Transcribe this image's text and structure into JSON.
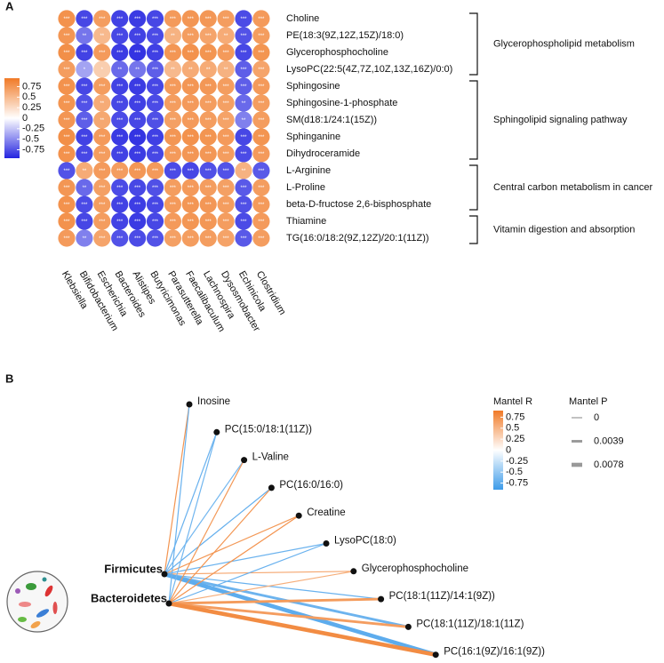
{
  "chart_data": [
    {
      "type": "heatmap",
      "panel": "A",
      "x_categories": [
        "Klebsiella",
        "Bifidobacterium",
        "Escherichia",
        "Bacteroides",
        "Alistipes",
        "Butyricimonas",
        "Parasutterella",
        "Faecalibaculum",
        "Lachnospira",
        "Dysosmobacter",
        "Echinicola",
        "Clostridium"
      ],
      "colorbar": {
        "lim": [
          -0.95,
          0.95
        ],
        "ticks": [
          0.75,
          0.5,
          0.25,
          0,
          -0.25,
          -0.5,
          -0.75
        ],
        "low": "#2424e0",
        "mid": "#ffffff",
        "high": "#f07a26"
      },
      "row_groups": [
        {
          "name": "Glycerophospholipid metabolism",
          "color": "#e01010",
          "rows": [
            {
              "name": "Choline",
              "values": [
                0.78,
                -0.8,
                0.7,
                -0.82,
                -0.85,
                -0.8,
                0.72,
                0.75,
                0.74,
                0.7,
                -0.78,
                0.72
              ],
              "value_labels": [
                "***",
                "***",
                "***",
                "***",
                "***",
                "***",
                "***",
                "***",
                "***",
                "***",
                "***",
                "***"
              ]
            },
            {
              "name": "PE(18:3(9Z,12Z,15Z)/18:0)",
              "values": [
                0.75,
                -0.6,
                0.5,
                -0.8,
                -0.82,
                -0.78,
                0.55,
                0.7,
                0.65,
                0.6,
                -0.75,
                0.7
              ],
              "value_labels": [
                "***",
                "**",
                "**",
                "***",
                "***",
                "***",
                "**",
                "***",
                "***",
                "**",
                "***",
                "***"
              ]
            },
            {
              "name": "Glycerophosphocholine",
              "values": [
                0.8,
                -0.82,
                0.72,
                -0.85,
                -0.88,
                -0.83,
                0.75,
                0.78,
                0.76,
                0.72,
                -0.8,
                0.76
              ],
              "value_labels": [
                "***",
                "***",
                "***",
                "***",
                "***",
                "***",
                "***",
                "***",
                "***",
                "***",
                "***",
                "***"
              ]
            },
            {
              "name": "LysoPC(22:5(4Z,7Z,10Z,13Z,16Z)/0:0)",
              "values": [
                0.7,
                -0.4,
                0.35,
                -0.65,
                -0.6,
                -0.7,
                0.5,
                0.6,
                0.6,
                0.55,
                -0.7,
                0.65
              ],
              "value_labels": [
                "***",
                "*",
                "*",
                "**",
                "**",
                "***",
                "**",
                "**",
                "**",
                "**",
                "***",
                "***"
              ]
            }
          ]
        },
        {
          "name": "Sphingolipid signaling pathway",
          "color": "#e01010",
          "rows": [
            {
              "name": "Sphingosine",
              "values": [
                0.78,
                -0.8,
                0.7,
                -0.82,
                -0.85,
                -0.8,
                0.72,
                0.75,
                0.74,
                0.7,
                -0.7,
                0.72
              ],
              "value_labels": [
                "***",
                "***",
                "***",
                "***",
                "***",
                "***",
                "***",
                "***",
                "***",
                "***",
                "***",
                "***"
              ]
            },
            {
              "name": "Sphingosine-1-phosphate",
              "values": [
                0.76,
                -0.75,
                0.6,
                -0.8,
                -0.83,
                -0.78,
                0.7,
                0.72,
                0.7,
                0.68,
                -0.65,
                0.7
              ],
              "value_labels": [
                "***",
                "***",
                "**",
                "***",
                "***",
                "***",
                "***",
                "***",
                "***",
                "***",
                "**",
                "***"
              ]
            },
            {
              "name": "SM(d18:1/24:1(15Z))",
              "values": [
                0.75,
                -0.7,
                0.62,
                -0.78,
                -0.8,
                -0.76,
                0.68,
                0.72,
                0.7,
                0.66,
                -0.55,
                0.7
              ],
              "value_labels": [
                "***",
                "***",
                "**",
                "***",
                "***",
                "***",
                "***",
                "***",
                "***",
                "***",
                "**",
                "***"
              ]
            },
            {
              "name": "Sphinganine",
              "values": [
                0.8,
                -0.82,
                0.72,
                -0.85,
                -0.88,
                -0.83,
                0.75,
                0.78,
                0.76,
                0.72,
                -0.8,
                0.76
              ],
              "value_labels": [
                "***",
                "***",
                "***",
                "***",
                "***",
                "***",
                "***",
                "***",
                "***",
                "***",
                "***",
                "***"
              ]
            },
            {
              "name": "Dihydroceramide",
              "values": [
                0.78,
                -0.8,
                0.7,
                -0.82,
                -0.85,
                -0.8,
                0.72,
                0.75,
                0.74,
                0.7,
                -0.78,
                0.72
              ],
              "value_labels": [
                "***",
                "***",
                "***",
                "***",
                "***",
                "***",
                "***",
                "***",
                "***",
                "***",
                "***",
                "***"
              ]
            }
          ]
        },
        {
          "name": "Central carbon metabolism in cancer",
          "color": "#111111",
          "rows": [
            {
              "name": "L-Arginine",
              "values": [
                -0.75,
                0.6,
                0.72,
                0.7,
                0.74,
                0.72,
                -0.78,
                -0.8,
                -0.76,
                -0.75,
                0.55,
                -0.72
              ],
              "value_labels": [
                "***",
                "**",
                "***",
                "***",
                "***",
                "***",
                "***",
                "***",
                "***",
                "***",
                "**",
                "***"
              ]
            },
            {
              "name": "L-Proline",
              "values": [
                0.75,
                -0.65,
                0.68,
                -0.78,
                -0.8,
                -0.76,
                0.7,
                0.72,
                0.7,
                0.68,
                -0.72,
                0.7
              ],
              "value_labels": [
                "***",
                "**",
                "***",
                "***",
                "***",
                "***",
                "***",
                "***",
                "***",
                "***",
                "***",
                "***"
              ]
            },
            {
              "name": "beta-D-fructose 2,6-bisphosphate",
              "values": [
                0.78,
                -0.78,
                0.7,
                -0.82,
                -0.84,
                -0.8,
                0.72,
                0.75,
                0.74,
                0.7,
                -0.76,
                0.72
              ],
              "value_labels": [
                "***",
                "***",
                "***",
                "***",
                "***",
                "***",
                "***",
                "***",
                "***",
                "***",
                "***",
                "***"
              ]
            }
          ]
        },
        {
          "name": "Vitamin digestion and absorption",
          "color": "#111111",
          "rows": [
            {
              "name": "Thiamine",
              "values": [
                0.78,
                -0.8,
                0.7,
                -0.82,
                -0.85,
                -0.8,
                0.72,
                0.75,
                0.74,
                0.7,
                -0.78,
                0.72
              ],
              "value_labels": [
                "***",
                "***",
                "***",
                "***",
                "***",
                "***",
                "***",
                "***",
                "***",
                "***",
                "***",
                "***"
              ]
            },
            {
              "name": "TG(16:0/18:2(9Z,12Z)/20:1(11Z))",
              "values": [
                0.72,
                -0.55,
                0.65,
                -0.75,
                -0.78,
                -0.75,
                0.68,
                0.7,
                0.7,
                0.66,
                -0.72,
                0.7
              ],
              "value_labels": [
                "***",
                "**",
                "***",
                "***",
                "***",
                "***",
                "***",
                "***",
                "***",
                "***",
                "***",
                "***"
              ]
            }
          ]
        }
      ]
    },
    {
      "type": "network",
      "panel": "B",
      "sources": [
        "Firmicutes",
        "Bacteroidetes"
      ],
      "targets": [
        "Inosine",
        "PC(15:0/18:1(11Z))",
        "L-Valine",
        "PC(16:0/16:0)",
        "Creatine",
        "LysoPC(18:0)",
        "Glycerophosphocholine",
        "PC(18:1(11Z)/14:1(9Z))",
        "PC(18:1(11Z)/18:1(11Z)",
        "PC(16:1(9Z)/16:1(9Z))"
      ],
      "mantel_r": [
        [
          0.72,
          -0.7,
          -0.65,
          -0.72,
          0.7,
          -0.68,
          0.6,
          -0.7,
          -0.68,
          -0.75
        ],
        [
          -0.7,
          -0.66,
          0.7,
          0.72,
          0.74,
          -0.7,
          0.55,
          0.68,
          0.66,
          0.78
        ]
      ],
      "mantel_p": [
        [
          0,
          0,
          0,
          0,
          0,
          0,
          0,
          0,
          0.0039,
          0.0078
        ],
        [
          0,
          0,
          0,
          0,
          0,
          0,
          0,
          0.0039,
          0.0039,
          0.0078
        ]
      ],
      "r_title": "Mantel R",
      "r_colorbar": {
        "lim": [
          -0.9,
          0.9
        ],
        "ticks": [
          0.75,
          0.5,
          0.25,
          0,
          -0.25,
          -0.5,
          -0.75
        ],
        "low": "#3d9be9",
        "mid": "#ffffff",
        "high": "#f07a26"
      },
      "p_title": "Mantel P",
      "p_legend": [
        0,
        0.0039,
        0.0078
      ]
    }
  ]
}
